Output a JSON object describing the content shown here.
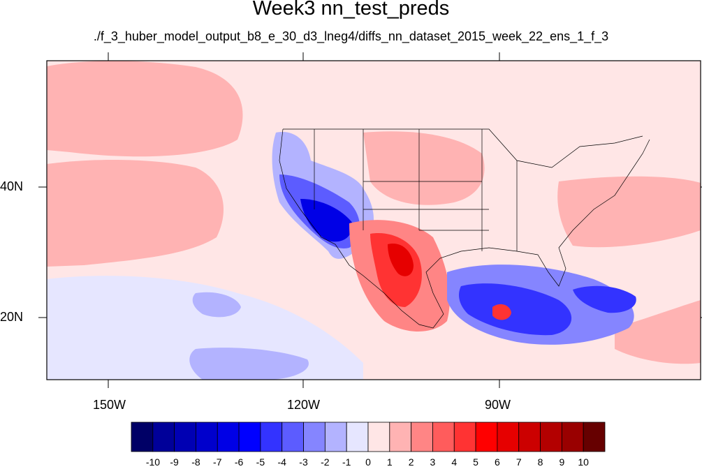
{
  "title": "Week3 nn_test_preds",
  "subtitle": "./f_3_huber_model_output_b8_e_30_d3_lneg4/diffs_nn_dataset_2015_week_22_ens_1_f_3",
  "map": {
    "lat_labels": [
      "40N",
      "20N"
    ],
    "lon_labels": [
      "150W",
      "120W",
      "90W"
    ]
  },
  "colorbar": {
    "labels": [
      "-10",
      "-9",
      "-8",
      "-7",
      "-6",
      "-5",
      "-4",
      "-3",
      "-2",
      "-1",
      "0",
      "1",
      "2",
      "3",
      "4",
      "5",
      "6",
      "7",
      "8",
      "9",
      "10"
    ],
    "colors": [
      "#000066",
      "#000099",
      "#0000b3",
      "#0000cc",
      "#0000e6",
      "#0000ff",
      "#3333ff",
      "#5c5cff",
      "#8585ff",
      "#b3b3ff",
      "#e6e6ff",
      "#ffe6e6",
      "#ffb3b3",
      "#ff8585",
      "#ff5c5c",
      "#ff3333",
      "#ff0000",
      "#e60000",
      "#cc0000",
      "#b30000",
      "#990000",
      "#660000"
    ]
  }
}
